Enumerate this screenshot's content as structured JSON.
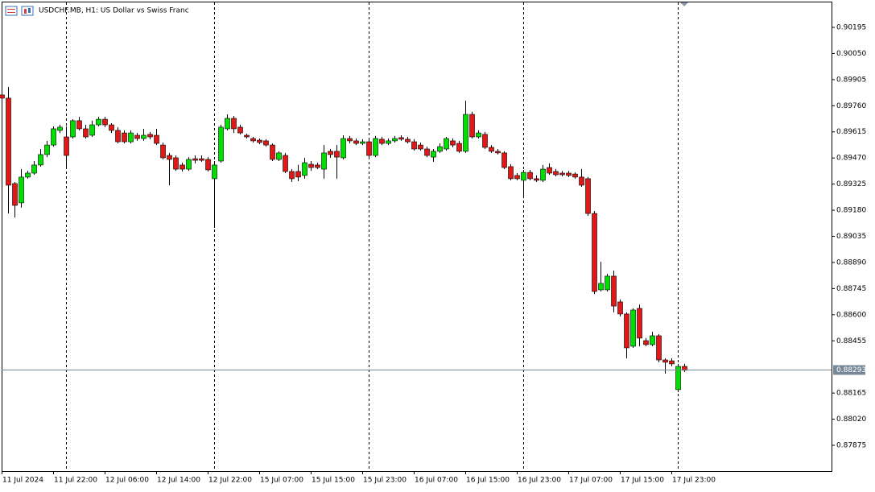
{
  "chart_data": {
    "type": "candlestick",
    "title": "USDCHF.MB, H1:  US Dollar vs Swiss Franc",
    "categories": [
      "11 Jul 2024",
      null,
      null,
      null,
      null,
      null,
      null,
      null,
      "11 Jul 22:00",
      null,
      null,
      null,
      null,
      null,
      null,
      null,
      "12 Jul 06:00",
      null,
      null,
      null,
      null,
      null,
      null,
      null,
      "12 Jul 14:00",
      null,
      null,
      null,
      null,
      null,
      null,
      null,
      "12 Jul 22:00",
      null,
      null,
      null,
      null,
      null,
      null,
      null,
      "15 Jul 07:00",
      null,
      null,
      null,
      null,
      null,
      null,
      null,
      "15 Jul 15:00",
      null,
      null,
      null,
      null,
      null,
      null,
      null,
      "15 Jul 23:00",
      null,
      null,
      null,
      null,
      null,
      null,
      null,
      "16 Jul 07:00",
      null,
      null,
      null,
      null,
      null,
      null,
      null,
      "16 Jul 15:00",
      null,
      null,
      null,
      null,
      null,
      null,
      null,
      "16 Jul 23:00",
      null,
      null,
      null,
      null,
      null,
      null,
      null,
      "17 Jul 07:00",
      null,
      null,
      null,
      null,
      null,
      null,
      null,
      "17 Jul 15:00",
      null,
      null,
      null,
      null,
      null,
      null,
      null,
      "17 Jul 23:00",
      null,
      null
    ],
    "open": [
      0.8982,
      0.89802,
      0.89328,
      0.89221,
      0.89364,
      0.89386,
      0.89431,
      0.89489,
      0.89542,
      0.89623,
      0.89587,
      0.89587,
      0.89677,
      0.89632,
      0.89596,
      0.89654,
      0.89685,
      0.89654,
      0.89623,
      0.89609,
      0.8956,
      0.89596,
      0.89578,
      0.89601,
      0.89596,
      0.89542,
      0.89484,
      0.89471,
      0.89431,
      0.89408,
      0.89466,
      0.89466,
      0.89462,
      0.89355,
      0.89453,
      0.89632,
      0.8969,
      0.89641,
      0.89596,
      0.89578,
      0.89569,
      0.89565,
      0.89542,
      0.89462,
      0.89484,
      0.89395,
      0.89395,
      0.89373,
      0.89435,
      0.89431,
      0.89408,
      0.89507,
      0.89507,
      0.89471,
      0.89578,
      0.89565,
      0.89551,
      0.8956,
      0.89484,
      0.89574,
      0.89551,
      0.89565,
      0.89583,
      0.89574,
      0.8956,
      0.89542,
      0.8952,
      0.89475,
      0.89507,
      0.8952,
      0.89565,
      0.89551,
      0.89507,
      0.89712,
      0.89587,
      0.89601,
      0.89529,
      0.89507,
      0.89498,
      0.89422,
      0.89373,
      0.89346,
      0.8939,
      0.89355,
      0.89346,
      0.89417,
      0.89395,
      0.89386,
      0.89386,
      0.89381,
      0.89364,
      0.89355,
      0.89162,
      0.88738,
      0.88738,
      0.88814,
      0.88671,
      0.88604,
      0.88425,
      0.88635,
      0.88456,
      0.88434,
      0.88483,
      0.88349,
      0.88344,
      0.88184,
      0.88313
    ],
    "high": [
      0.89833,
      0.89864,
      0.89337,
      0.89408,
      0.89399,
      0.89453,
      0.8952,
      0.89565,
      0.89645,
      0.89654,
      0.89645,
      0.89685,
      0.89699,
      0.89654,
      0.89677,
      0.89699,
      0.89699,
      0.89663,
      0.89641,
      0.89623,
      0.89623,
      0.89609,
      0.89632,
      0.89614,
      0.89632,
      0.89556,
      0.89498,
      0.89484,
      0.89444,
      0.89475,
      0.89484,
      0.89484,
      0.89475,
      0.89453,
      0.89654,
      0.89712,
      0.89703,
      0.89654,
      0.89605,
      0.89587,
      0.89578,
      0.89574,
      0.89551,
      0.89507,
      0.89498,
      0.89408,
      0.89431,
      0.89471,
      0.89453,
      0.89444,
      0.89542,
      0.8952,
      0.89542,
      0.89596,
      0.89592,
      0.89578,
      0.89574,
      0.89574,
      0.89592,
      0.89587,
      0.89578,
      0.89592,
      0.89596,
      0.89587,
      0.89574,
      0.89556,
      0.89533,
      0.8952,
      0.89551,
      0.89587,
      0.89578,
      0.89565,
      0.89788,
      0.89726,
      0.89623,
      0.89614,
      0.89542,
      0.8952,
      0.89507,
      0.89435,
      0.89386,
      0.89404,
      0.89404,
      0.89373,
      0.89431,
      0.8944,
      0.89408,
      0.89399,
      0.89399,
      0.8939,
      0.89408,
      0.89364,
      0.89176,
      0.88894,
      0.88827,
      0.88845,
      0.88684,
      0.88613,
      0.88635,
      0.88657,
      0.8847,
      0.88505,
      0.88492,
      0.88358,
      0.88358,
      0.88327,
      0.88327
    ],
    "low": [
      0.89788,
      0.89162,
      0.8914,
      0.89194,
      0.89355,
      0.89377,
      0.89422,
      0.89475,
      0.89533,
      0.89609,
      0.89417,
      0.89578,
      0.89623,
      0.89578,
      0.89587,
      0.89645,
      0.89641,
      0.89609,
      0.89551,
      0.89551,
      0.89551,
      0.89565,
      0.89565,
      0.89574,
      0.89542,
      0.89462,
      0.89319,
      0.89399,
      0.89395,
      0.89399,
      0.8944,
      0.89449,
      0.89395,
      0.89082,
      0.89444,
      0.89623,
      0.89609,
      0.89601,
      0.89578,
      0.89556,
      0.89547,
      0.89533,
      0.89453,
      0.89453,
      0.89386,
      0.89337,
      0.89341,
      0.89355,
      0.89399,
      0.89408,
      0.89355,
      0.89471,
      0.89355,
      0.89462,
      0.89551,
      0.89542,
      0.89542,
      0.89475,
      0.89475,
      0.89542,
      0.89542,
      0.89556,
      0.89565,
      0.89551,
      0.89511,
      0.89511,
      0.89475,
      0.89449,
      0.89498,
      0.89511,
      0.89529,
      0.89498,
      0.89498,
      0.89578,
      0.89578,
      0.8952,
      0.89498,
      0.89489,
      0.89408,
      0.89346,
      0.89346,
      0.89252,
      0.89346,
      0.89337,
      0.89337,
      0.89377,
      0.89368,
      0.89368,
      0.89364,
      0.89355,
      0.8931,
      0.89149,
      0.88715,
      0.88729,
      0.88729,
      0.88613,
      0.8859,
      0.88358,
      0.88416,
      0.88425,
      0.88425,
      0.88425,
      0.88336,
      0.88273,
      0.88313,
      0.8817,
      0.88282
    ],
    "close": [
      0.89802,
      0.89319,
      0.89207,
      0.89364,
      0.89386,
      0.89431,
      0.89489,
      0.89542,
      0.89632,
      0.89641,
      0.89484,
      0.89677,
      0.89632,
      0.89587,
      0.89654,
      0.89685,
      0.89654,
      0.89623,
      0.8956,
      0.8956,
      0.89609,
      0.89578,
      0.89596,
      0.89587,
      0.89551,
      0.89471,
      0.89462,
      0.89408,
      0.89408,
      0.89462,
      0.89457,
      0.89457,
      0.89404,
      0.89431,
      0.89641,
      0.8969,
      0.89632,
      0.89609,
      0.89587,
      0.89565,
      0.89556,
      0.89542,
      0.89462,
      0.89498,
      0.89395,
      0.89355,
      0.89364,
      0.89444,
      0.89417,
      0.89417,
      0.89498,
      0.89489,
      0.89475,
      0.89578,
      0.89565,
      0.89551,
      0.8956,
      0.89484,
      0.89578,
      0.89551,
      0.89565,
      0.89578,
      0.89574,
      0.8956,
      0.8952,
      0.8952,
      0.89484,
      0.89507,
      0.89533,
      0.89578,
      0.89542,
      0.89507,
      0.89712,
      0.89587,
      0.89609,
      0.89529,
      0.89507,
      0.89498,
      0.89417,
      0.89355,
      0.89355,
      0.8939,
      0.89355,
      0.89346,
      0.89408,
      0.89386,
      0.89377,
      0.89377,
      0.89373,
      0.89364,
      0.89319,
      0.89162,
      0.88729,
      0.88774,
      0.88814,
      0.88648,
      0.88604,
      0.88416,
      0.88626,
      0.8847,
      0.88434,
      0.88483,
      0.88349,
      0.88336,
      0.88327,
      0.88313,
      0.88291
    ],
    "up_color": "#00e000",
    "down_color": "#e01818",
    "wick_color": "#000000",
    "ylim": [
      0.87732,
      0.90338
    ],
    "yticks": [
      0.90195,
      {
        "value": 0.9005,
        "label": "0.90050"
      },
      0.89905,
      {
        "value": 0.8976,
        "label": "0.89760"
      },
      0.89615,
      {
        "value": 0.8947,
        "label": "0.89470"
      },
      0.89325,
      {
        "value": 0.8918,
        "label": "0.89180"
      },
      0.89035,
      {
        "value": 0.8889,
        "label": "0.88890"
      },
      0.88745,
      {
        "value": 0.886,
        "label": "0.88600"
      },
      0.88455,
      0.88165,
      {
        "value": 0.8802,
        "label": "0.88020"
      },
      0.87875
    ],
    "last_price": 0.88293,
    "last_price_color": "#778899"
  }
}
